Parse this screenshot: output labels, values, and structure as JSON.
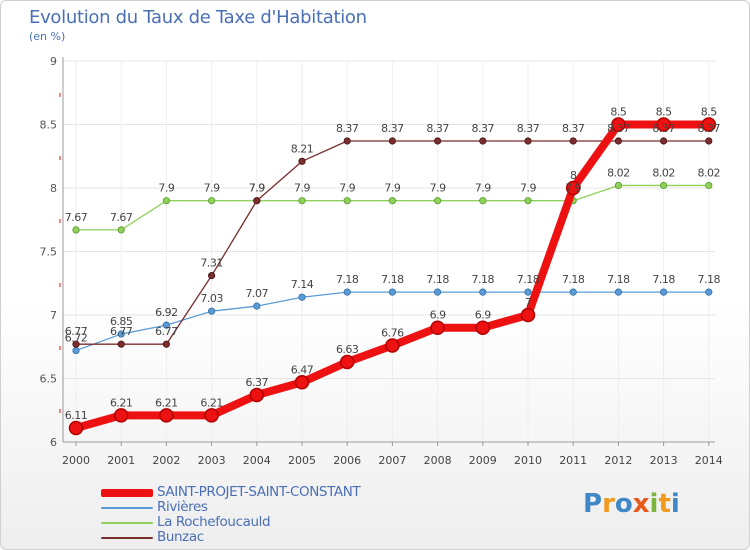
{
  "header": {
    "title": "Evolution du Taux de Taxe d'Habitation",
    "unit": "(en %)"
  },
  "chart_data": {
    "type": "line",
    "title": "Evolution du Taux de Taxe d'Habitation",
    "ylabel": "(en %)",
    "xlabel": "",
    "ylim": [
      6,
      9
    ],
    "yticks": [
      6,
      6.5,
      7,
      7.5,
      8,
      8.5,
      9
    ],
    "x": [
      "2000",
      "2001",
      "2002",
      "2003",
      "2004",
      "2005",
      "2006",
      "2007",
      "2008",
      "2009",
      "2010",
      "2011",
      "2012",
      "2013",
      "2014"
    ],
    "series": [
      {
        "name": "SAINT-PROJET-SAINT-CONSTANT",
        "color": "#ee1111",
        "values": [
          6.11,
          6.21,
          6.21,
          6.21,
          6.37,
          6.47,
          6.63,
          6.76,
          6.9,
          6.9,
          7,
          8,
          8.5,
          8.5,
          8.5
        ],
        "labels": [
          "6.11",
          "6.21",
          "6.21",
          "6.21",
          "6.37",
          "6.47",
          "6.63",
          "6.76",
          "6.9",
          "6.9",
          "7",
          "8",
          "8.5",
          "8.5",
          "8.5"
        ]
      },
      {
        "name": "Rivières",
        "color": "#5b9bd5",
        "values": [
          6.72,
          6.85,
          6.92,
          7.03,
          7.07,
          7.14,
          7.18,
          7.18,
          7.18,
          7.18,
          7.18,
          7.18,
          7.18,
          7.18,
          7.18
        ],
        "labels": [
          "6.72",
          "6.85",
          "6.92",
          "7.03",
          "7.07",
          "7.14",
          "7.18",
          "7.18",
          "7.18",
          "7.18",
          "7.18",
          "7.18",
          "7.18",
          "7.18",
          "7.18"
        ]
      },
      {
        "name": "La Rochefoucauld",
        "color": "#8ed05a",
        "values": [
          7.67,
          7.67,
          7.9,
          7.9,
          7.9,
          7.9,
          7.9,
          7.9,
          7.9,
          7.9,
          7.9,
          7.9,
          8.02,
          8.02,
          8.02
        ],
        "labels": [
          "7.67",
          "7.67",
          "7.9",
          "7.9",
          "7.9",
          "7.9",
          "7.9",
          "7.9",
          "7.9",
          "7.9",
          "7.9",
          "7.9",
          "8.02",
          "8.02",
          "8.02"
        ]
      },
      {
        "name": "Bunzac",
        "color": "#7a2e2e",
        "values": [
          6.77,
          6.77,
          6.77,
          7.31,
          7.9,
          8.21,
          8.37,
          8.37,
          8.37,
          8.37,
          8.37,
          8.37,
          8.37,
          8.37,
          8.37
        ],
        "labels": [
          "6.77",
          "6.77",
          "6.77",
          "7.31",
          "7.9",
          "8.21",
          "8.37",
          "8.37",
          "8.37",
          "8.37",
          "8.37",
          "8.37",
          "8.37",
          "8.37",
          "8.37"
        ]
      }
    ],
    "legend": "bottom-left"
  },
  "brand": {
    "logo_letters": [
      "P",
      "r",
      "o",
      "x",
      "i",
      "t",
      "i"
    ]
  }
}
